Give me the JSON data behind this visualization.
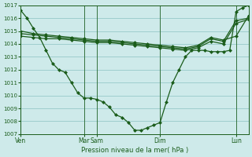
{
  "background_color": "#ceeaea",
  "grid_color": "#9ecece",
  "line_color": "#1a5c1a",
  "xlabel": "Pression niveau de la mer( hPa )",
  "ylim": [
    1007,
    1017
  ],
  "yticks": [
    1007,
    1008,
    1009,
    1010,
    1011,
    1012,
    1013,
    1014,
    1015,
    1016,
    1017
  ],
  "day_positions": [
    0,
    5,
    6,
    11,
    17
  ],
  "day_labels": [
    "Ven",
    "Mar",
    "Sam",
    "Dim",
    "Lun"
  ],
  "xlim": [
    0,
    18
  ],
  "line1_x": [
    0,
    0.5,
    1.0,
    1.5,
    2.0,
    2.5,
    3.0,
    3.5,
    4.0,
    4.5,
    5.0,
    5.5,
    6.0,
    6.5,
    7.0,
    7.5,
    8.0,
    8.5,
    9.0,
    9.5,
    10.0,
    10.5,
    11.0,
    11.5,
    12.0,
    12.5,
    13.0,
    13.5,
    14.0,
    14.5,
    15.0,
    15.5,
    16.0,
    16.5,
    17.0,
    17.5,
    18.0
  ],
  "line1_y": [
    1016.6,
    1016.0,
    1015.2,
    1014.5,
    1013.5,
    1012.5,
    1012.0,
    1011.8,
    1011.0,
    1010.2,
    1009.8,
    1009.8,
    1009.7,
    1009.5,
    1009.1,
    1008.5,
    1008.3,
    1007.9,
    1007.3,
    1007.3,
    1007.5,
    1007.7,
    1007.9,
    1009.5,
    1011.0,
    1012.0,
    1013.0,
    1013.5,
    1013.5,
    1013.5,
    1013.4,
    1013.4,
    1013.4,
    1013.5,
    1016.5,
    1016.8,
    1017.0
  ],
  "line2_x": [
    0,
    1,
    2,
    3,
    4,
    5,
    6,
    7,
    8,
    9,
    10,
    11,
    12,
    13,
    14,
    15,
    16,
    17,
    18
  ],
  "line2_y": [
    1015.0,
    1014.8,
    1014.7,
    1014.6,
    1014.5,
    1014.4,
    1014.3,
    1014.3,
    1014.2,
    1014.1,
    1014.0,
    1013.9,
    1013.8,
    1013.7,
    1013.9,
    1014.5,
    1014.3,
    1014.6,
    1016.2
  ],
  "line3_x": [
    0,
    1,
    2,
    3,
    4,
    5,
    6,
    7,
    8,
    9,
    10,
    11,
    12,
    13,
    14,
    15,
    16,
    17,
    18
  ],
  "line3_y": [
    1014.8,
    1014.7,
    1014.6,
    1014.5,
    1014.4,
    1014.3,
    1014.2,
    1014.2,
    1014.1,
    1014.0,
    1013.9,
    1013.8,
    1013.7,
    1013.6,
    1013.8,
    1014.4,
    1014.2,
    1015.8,
    1016.0
  ],
  "line4_x": [
    0,
    1,
    2,
    3,
    4,
    5,
    6,
    7,
    8,
    9,
    10,
    11,
    12,
    13,
    14,
    15,
    16,
    17,
    18
  ],
  "line4_y": [
    1014.6,
    1014.5,
    1014.4,
    1014.4,
    1014.3,
    1014.2,
    1014.1,
    1014.1,
    1014.0,
    1013.9,
    1013.8,
    1013.7,
    1013.6,
    1013.5,
    1013.7,
    1014.2,
    1014.0,
    1015.6,
    1015.9
  ]
}
